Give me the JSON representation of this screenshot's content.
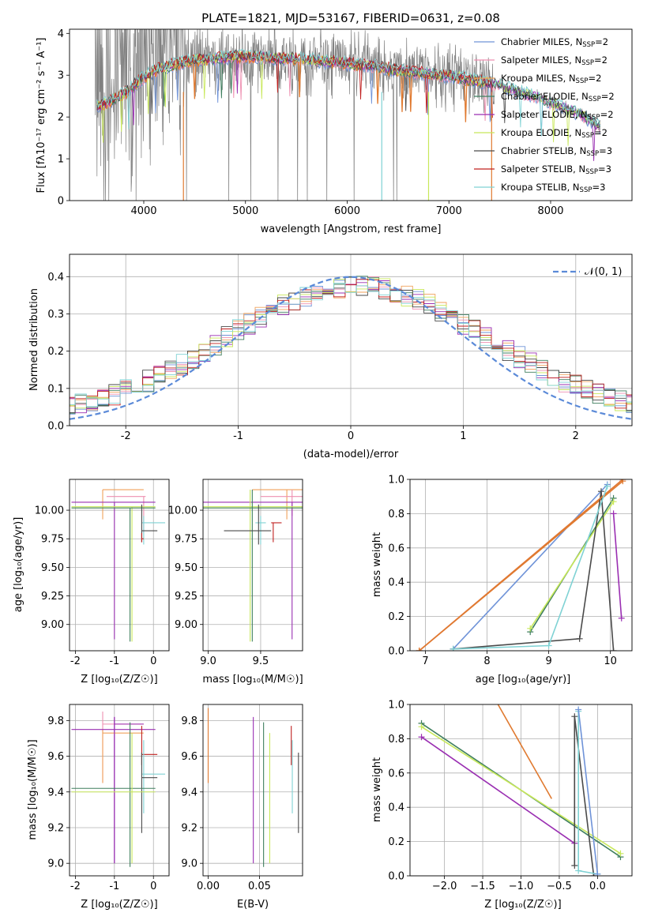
{
  "figure": {
    "title": "PLATE=1821, MJD=53167, FIBERID=0631, z=0.08"
  },
  "colors": {
    "Chabrier MILES": "#6f93d8",
    "Salpeter MILES": "#ee8fb0",
    "Kroupa MILES": "#f0a15a",
    "Chabrier ELODIE": "#3f7f5f",
    "Salpeter ELODIE": "#9a2fb2",
    "Kroupa ELODIE": "#c8e85a",
    "Chabrier STELIB": "#4a4a4a",
    "Salpeter STELIB": "#c0201f",
    "Kroupa STELIB": "#7fd2d4",
    "data": "#808080",
    "orange_model": "#e07a30"
  },
  "chart_data": [
    {
      "id": "spectrum",
      "type": "line",
      "title": "PLATE=1821, MJD=53167, FIBERID=0631, z=0.08",
      "xlabel": "wavelength [Angstrom, rest frame]",
      "ylabel": "Flux [fλ10⁻¹⁷ erg cm⁻² s⁻¹ A⁻¹]",
      "xlim": [
        3270,
        8800
      ],
      "ylim": [
        0,
        4.1
      ],
      "xticks": [
        4000,
        5000,
        6000,
        7000,
        8000
      ],
      "yticks": [
        0,
        1,
        2,
        3,
        4
      ],
      "legend_position": "upper right",
      "series": [
        {
          "name": "Chabrier MILES, N_SSP=2",
          "legend_label": "Chabrier MILES, N",
          "nssp": "2"
        },
        {
          "name": "Salpeter MILES, N_SSP=2",
          "legend_label": "Salpeter MILES, N",
          "nssp": "2"
        },
        {
          "name": "Kroupa MILES, N_SSP=2",
          "legend_label": "Kroupa MILES, N",
          "nssp": "2"
        },
        {
          "name": "Chabrier ELODIE, N_SSP=2",
          "legend_label": "Chabrier ELODIE, N",
          "nssp": "2"
        },
        {
          "name": "Salpeter ELODIE, N_SSP=2",
          "legend_label": "Salpeter ELODIE, N",
          "nssp": "2"
        },
        {
          "name": "Kroupa ELODIE, N_SSP=2",
          "legend_label": "Kroupa ELODIE, N",
          "nssp": "2"
        },
        {
          "name": "Chabrier STELIB, N_SSP=3",
          "legend_label": "Chabrier STELIB, N",
          "nssp": "3"
        },
        {
          "name": "Salpeter STELIB, N_SSP=3",
          "legend_label": "Salpeter STELIB, N",
          "nssp": "3"
        },
        {
          "name": "Kroupa STELIB, N_SSP=3",
          "legend_label": "Kroupa STELIB, N",
          "nssp": "3"
        }
      ],
      "continuum": {
        "wavelength": [
          3500,
          3650,
          3800,
          3950,
          4100,
          4300,
          4500,
          4700,
          4900,
          5100,
          5300,
          5500,
          5700,
          5900,
          6100,
          6300,
          6500,
          6700,
          6900,
          7100,
          7300,
          7500,
          7700,
          7900,
          8100,
          8300,
          8500
        ],
        "flux": [
          2.2,
          2.35,
          2.55,
          2.85,
          3.1,
          3.25,
          3.35,
          3.4,
          3.45,
          3.45,
          3.4,
          3.4,
          3.35,
          3.3,
          3.25,
          3.2,
          3.1,
          3.05,
          3.0,
          2.95,
          2.85,
          2.75,
          2.6,
          2.45,
          2.25,
          2.05,
          1.75
        ]
      }
    },
    {
      "id": "residuals",
      "type": "line",
      "xlabel": "(data-model)/error",
      "ylabel": "Normed distribution",
      "xlim": [
        -2.5,
        2.5
      ],
      "ylim": [
        0,
        0.46
      ],
      "xticks": [
        -2,
        -1,
        0,
        1,
        2
      ],
      "yticks": [
        0.0,
        0.1,
        0.2,
        0.3,
        0.4
      ],
      "legend_label": "𝒩(0, 1)",
      "legend_position": "upper right",
      "grid": true,
      "reference_curve": "normal(0,1) pdf, dashed"
    },
    {
      "id": "age_vs_Z",
      "type": "scatter",
      "xlabel": "Z [log₁₀(Z/Z☉)]",
      "ylabel": "age  [log₁₀(age/yr)]",
      "xlim": [
        -2.15,
        0.4
      ],
      "ylim": [
        8.77,
        10.27
      ],
      "xticks": [
        -2,
        -1,
        0
      ],
      "yticks": [
        9.0,
        9.25,
        9.5,
        9.75,
        10.0
      ],
      "grid": true
    },
    {
      "id": "age_vs_mass",
      "type": "scatter",
      "xlabel": "mass [log₁₀(M/M☉)]",
      "xlim": [
        8.95,
        9.9
      ],
      "ylim": [
        8.77,
        10.27
      ],
      "xticks": [
        9.0,
        9.5
      ],
      "yticks": [
        9.0,
        9.25,
        9.5,
        9.75,
        10.0
      ],
      "grid": true
    },
    {
      "id": "massweight_vs_age",
      "type": "line",
      "xlabel": "age  [log₁₀(age/yr)]",
      "ylabel": "mass weight",
      "xlim": [
        6.75,
        10.35
      ],
      "ylim": [
        0,
        1.0
      ],
      "xticks": [
        7,
        8,
        9,
        10
      ],
      "yticks": [
        0.0,
        0.2,
        0.4,
        0.6,
        0.8,
        1.0
      ],
      "grid": true,
      "series": [
        {
          "name": "Chabrier MILES",
          "x": [
            7.45,
            9.95
          ],
          "y": [
            0.01,
            0.97
          ]
        },
        {
          "name": "Salpeter MILES",
          "x": [
            6.9,
            10.2
          ],
          "y": [
            0.0,
            1.0
          ]
        },
        {
          "name": "Kroupa MILES",
          "x": [
            6.9,
            10.2
          ],
          "y": [
            0.0,
            0.99
          ]
        },
        {
          "name": "Chabrier ELODIE",
          "x": [
            8.7,
            10.05
          ],
          "y": [
            0.11,
            0.89
          ]
        },
        {
          "name": "Salpeter ELODIE",
          "x": [
            10.05,
            10.18
          ],
          "y": [
            0.8,
            0.19
          ]
        },
        {
          "name": "Kroupa ELODIE",
          "x": [
            8.7,
            10.05
          ],
          "y": [
            0.13,
            0.87
          ]
        },
        {
          "name": "Chabrier STELIB",
          "x": [
            7.45,
            9.5,
            9.85,
            10.05
          ],
          "y": [
            0.01,
            0.07,
            0.93,
            0.0
          ]
        },
        {
          "name": "Salpeter STELIB",
          "x": [
            6.9,
            10.2
          ],
          "y": [
            0.0,
            1.0
          ]
        },
        {
          "name": "Kroupa STELIB",
          "x": [
            7.45,
            9.0,
            9.95
          ],
          "y": [
            0.01,
            0.03,
            0.96
          ]
        }
      ]
    },
    {
      "id": "mass_vs_Z",
      "type": "scatter",
      "xlabel": "Z [log₁₀(Z/Z☉)]",
      "ylabel": "mass [log₁₀(M/M☉)]",
      "xlim": [
        -2.15,
        0.4
      ],
      "ylim": [
        8.93,
        9.89
      ],
      "xticks": [
        -2,
        -1,
        0
      ],
      "yticks": [
        9.0,
        9.2,
        9.4,
        9.6,
        9.8
      ],
      "grid": true
    },
    {
      "id": "mass_vs_ebv",
      "type": "scatter",
      "xlabel": "E(B-V)",
      "xlim": [
        -0.005,
        0.092
      ],
      "ylim": [
        8.93,
        9.89
      ],
      "xticks": [
        0.0,
        0.05
      ],
      "yticks": [
        9.0,
        9.2,
        9.4,
        9.6,
        9.8
      ],
      "grid": true,
      "series": [
        {
          "name": "Kroupa MILES",
          "x": 0.0,
          "y": [
            9.45,
            9.87
          ]
        },
        {
          "name": "Salpeter ELODIE",
          "x": 0.044,
          "y": [
            9.0,
            9.82
          ]
        },
        {
          "name": "Chabrier ELODIE",
          "x": 0.054,
          "y": [
            8.98,
            9.79
          ]
        },
        {
          "name": "Kroupa ELODIE",
          "x": 0.06,
          "y": [
            9.0,
            9.73
          ]
        },
        {
          "name": "Salpeter STELIB",
          "x": 0.081,
          "y": [
            9.55,
            9.77
          ]
        },
        {
          "name": "Kroupa STELIB",
          "x": 0.082,
          "y": [
            9.28,
            9.69
          ]
        },
        {
          "name": "Chabrier STELIB",
          "x": 0.088,
          "y": [
            9.17,
            9.62
          ]
        }
      ]
    },
    {
      "id": "massweight_vs_Z",
      "type": "line",
      "xlabel": "Z [log₁₀(Z/Z☉)]",
      "ylabel": "mass weight",
      "xlim": [
        -2.45,
        0.45
      ],
      "ylim": [
        0,
        1.0
      ],
      "xticks": [
        -2.0,
        -1.5,
        -1.0,
        -0.5,
        0.0
      ],
      "yticks": [
        0.0,
        0.2,
        0.4,
        0.6,
        0.8,
        1.0
      ],
      "grid": true,
      "series": [
        {
          "name": "Chabrier ELODIE",
          "x": [
            -2.3,
            0.3
          ],
          "y": [
            0.89,
            0.11
          ]
        },
        {
          "name": "Kroupa ELODIE",
          "x": [
            -2.3,
            0.3
          ],
          "y": [
            0.87,
            0.13
          ]
        },
        {
          "name": "Salpeter ELODIE",
          "x": [
            -2.3,
            -0.3
          ],
          "y": [
            0.81,
            0.19
          ]
        },
        {
          "name": "Kroupa MILES",
          "x": [
            -1.3,
            -0.6
          ],
          "y": [
            1.0,
            0.45
          ]
        },
        {
          "name": "Chabrier STELIB",
          "x": [
            -0.3,
            -0.3,
            -0.05
          ],
          "y": [
            0.06,
            0.93,
            0.0
          ]
        },
        {
          "name": "Kroupa STELIB",
          "x": [
            -0.25,
            -0.25,
            0.0
          ],
          "y": [
            0.96,
            0.03,
            0.01
          ]
        },
        {
          "name": "Chabrier MILES",
          "x": [
            -0.25,
            0.0
          ],
          "y": [
            0.97,
            0.01
          ]
        }
      ]
    }
  ]
}
